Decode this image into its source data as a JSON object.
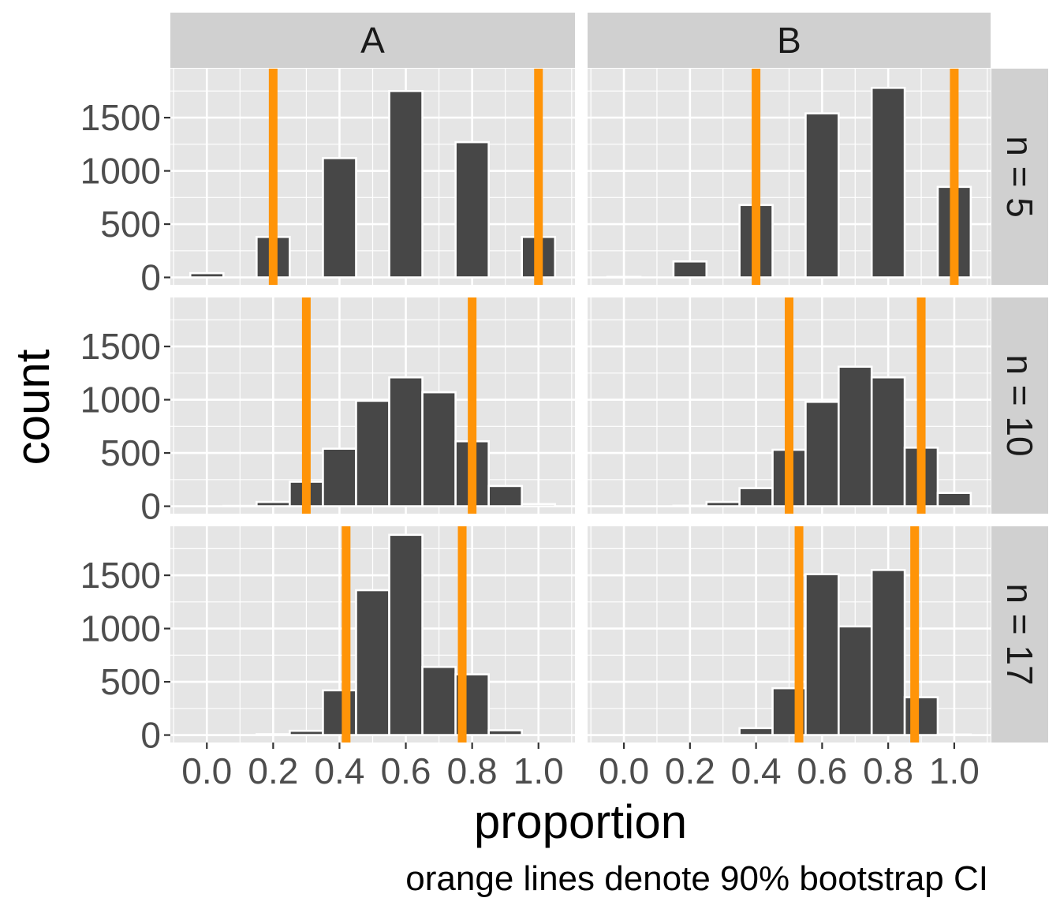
{
  "chart_data": {
    "type": "bar",
    "subtype": "faceted-histogram",
    "xlabel": "proportion",
    "ylabel": "count",
    "caption": "orange lines denote 90% bootstrap CI",
    "x_ticks": [
      0.0,
      0.2,
      0.4,
      0.6,
      0.8,
      1.0
    ],
    "x_tick_labels": [
      "0.0",
      "0.2",
      "0.4",
      "0.6",
      "0.8",
      "1.0"
    ],
    "y_ticks": [
      0,
      500,
      1000,
      1500
    ],
    "y_tick_labels": [
      "0",
      "500",
      "1000",
      "1500"
    ],
    "xlim": [
      -0.11,
      1.11
    ],
    "ylim": [
      -70,
      1960
    ],
    "bin_width": 0.1,
    "col_labels": [
      "A",
      "B"
    ],
    "row_labels": [
      "n = 5",
      "n = 10",
      "n = 17"
    ],
    "grid": true,
    "colors": {
      "bar": "#474747",
      "bar_outline": "#ffffff",
      "ci_line": "#ff9408",
      "panel_bg": "#e5e5e5",
      "strip_bg": "#d0d0d0",
      "grid": "#ffffff"
    },
    "bin_centers": [
      0.0,
      0.1,
      0.2,
      0.3,
      0.4,
      0.5,
      0.6,
      0.7,
      0.8,
      0.9,
      1.0
    ],
    "panels": [
      {
        "row": 0,
        "col": 0,
        "counts": [
          40,
          0,
          380,
          0,
          1120,
          0,
          1750,
          0,
          1270,
          0,
          380
        ],
        "ci": [
          0.2,
          1.0
        ]
      },
      {
        "row": 0,
        "col": 1,
        "counts": [
          5,
          0,
          150,
          0,
          680,
          0,
          1540,
          0,
          1780,
          0,
          850
        ],
        "ci": [
          0.4,
          1.0
        ]
      },
      {
        "row": 1,
        "col": 0,
        "counts": [
          0,
          3,
          40,
          230,
          540,
          990,
          1210,
          1070,
          610,
          190,
          20
        ],
        "ci": [
          0.3,
          0.8
        ]
      },
      {
        "row": 1,
        "col": 1,
        "counts": [
          0,
          0,
          5,
          40,
          170,
          530,
          980,
          1310,
          1210,
          550,
          125
        ],
        "ci": [
          0.5,
          0.9
        ]
      },
      {
        "row": 2,
        "col": 0,
        "counts": [
          0,
          0,
          8,
          40,
          420,
          1360,
          1880,
          640,
          570,
          45,
          0
        ],
        "ci": [
          0.42,
          0.77
        ]
      },
      {
        "row": 2,
        "col": 1,
        "counts": [
          0,
          0,
          0,
          0,
          65,
          440,
          1510,
          1020,
          1550,
          355,
          5
        ],
        "ci": [
          0.53,
          0.88
        ]
      }
    ]
  }
}
